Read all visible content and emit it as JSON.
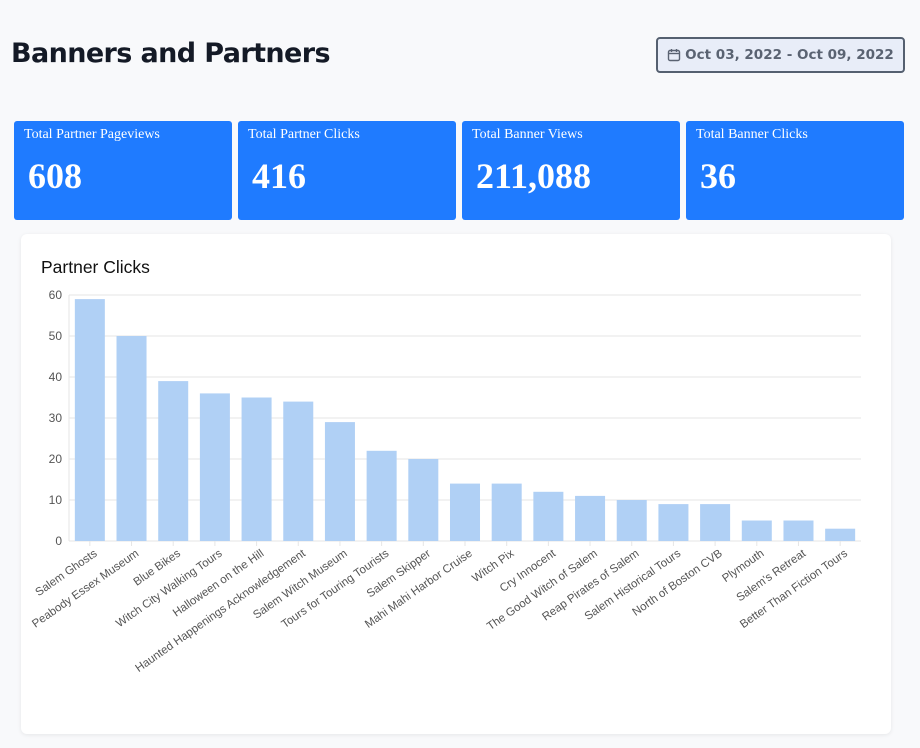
{
  "header": {
    "title": "Banners and Partners",
    "date_range": "Oct 03, 2022 - Oct 09, 2022",
    "date_icon": "calendar-icon"
  },
  "stats": [
    {
      "label": "Total Partner Pageviews",
      "value": "608"
    },
    {
      "label": "Total Partner Clicks",
      "value": "416"
    },
    {
      "label": "Total Banner Views",
      "value": "211,088"
    },
    {
      "label": "Total Banner Clicks",
      "value": "36"
    }
  ],
  "colors": {
    "card": "#1f7bff",
    "bar": "#b0d0f5",
    "grid": "#e6e6e6"
  },
  "chart_data": {
    "type": "bar",
    "title": "Partner Clicks",
    "xlabel": "",
    "ylabel": "",
    "ylim": [
      0,
      60
    ],
    "yticks": [
      0,
      10,
      20,
      30,
      40,
      50,
      60
    ],
    "grid": true,
    "categories": [
      "Salem Ghosts",
      "Peabody Essex Museum",
      "Blue Bikes",
      "Witch City Walking Tours",
      "Halloween on the Hill",
      "Haunted Happenings Acknowledgement",
      "Salem Witch Museum",
      "Tours for Touring Tourists",
      "Salem Skipper",
      "Mahi Mahi Harbor Cruise",
      "Witch Pix",
      "Cry Innocent",
      "The Good Witch of Salem",
      "Reap Pirates of Salem",
      "Salem Historical Tours",
      "North of Boston CVB",
      "Plymouth",
      "Salem's Retreat",
      "Better Than Fiction Tours"
    ],
    "values": [
      59,
      50,
      39,
      36,
      35,
      34,
      29,
      22,
      20,
      14,
      14,
      12,
      11,
      10,
      9,
      9,
      5,
      5,
      3
    ]
  }
}
